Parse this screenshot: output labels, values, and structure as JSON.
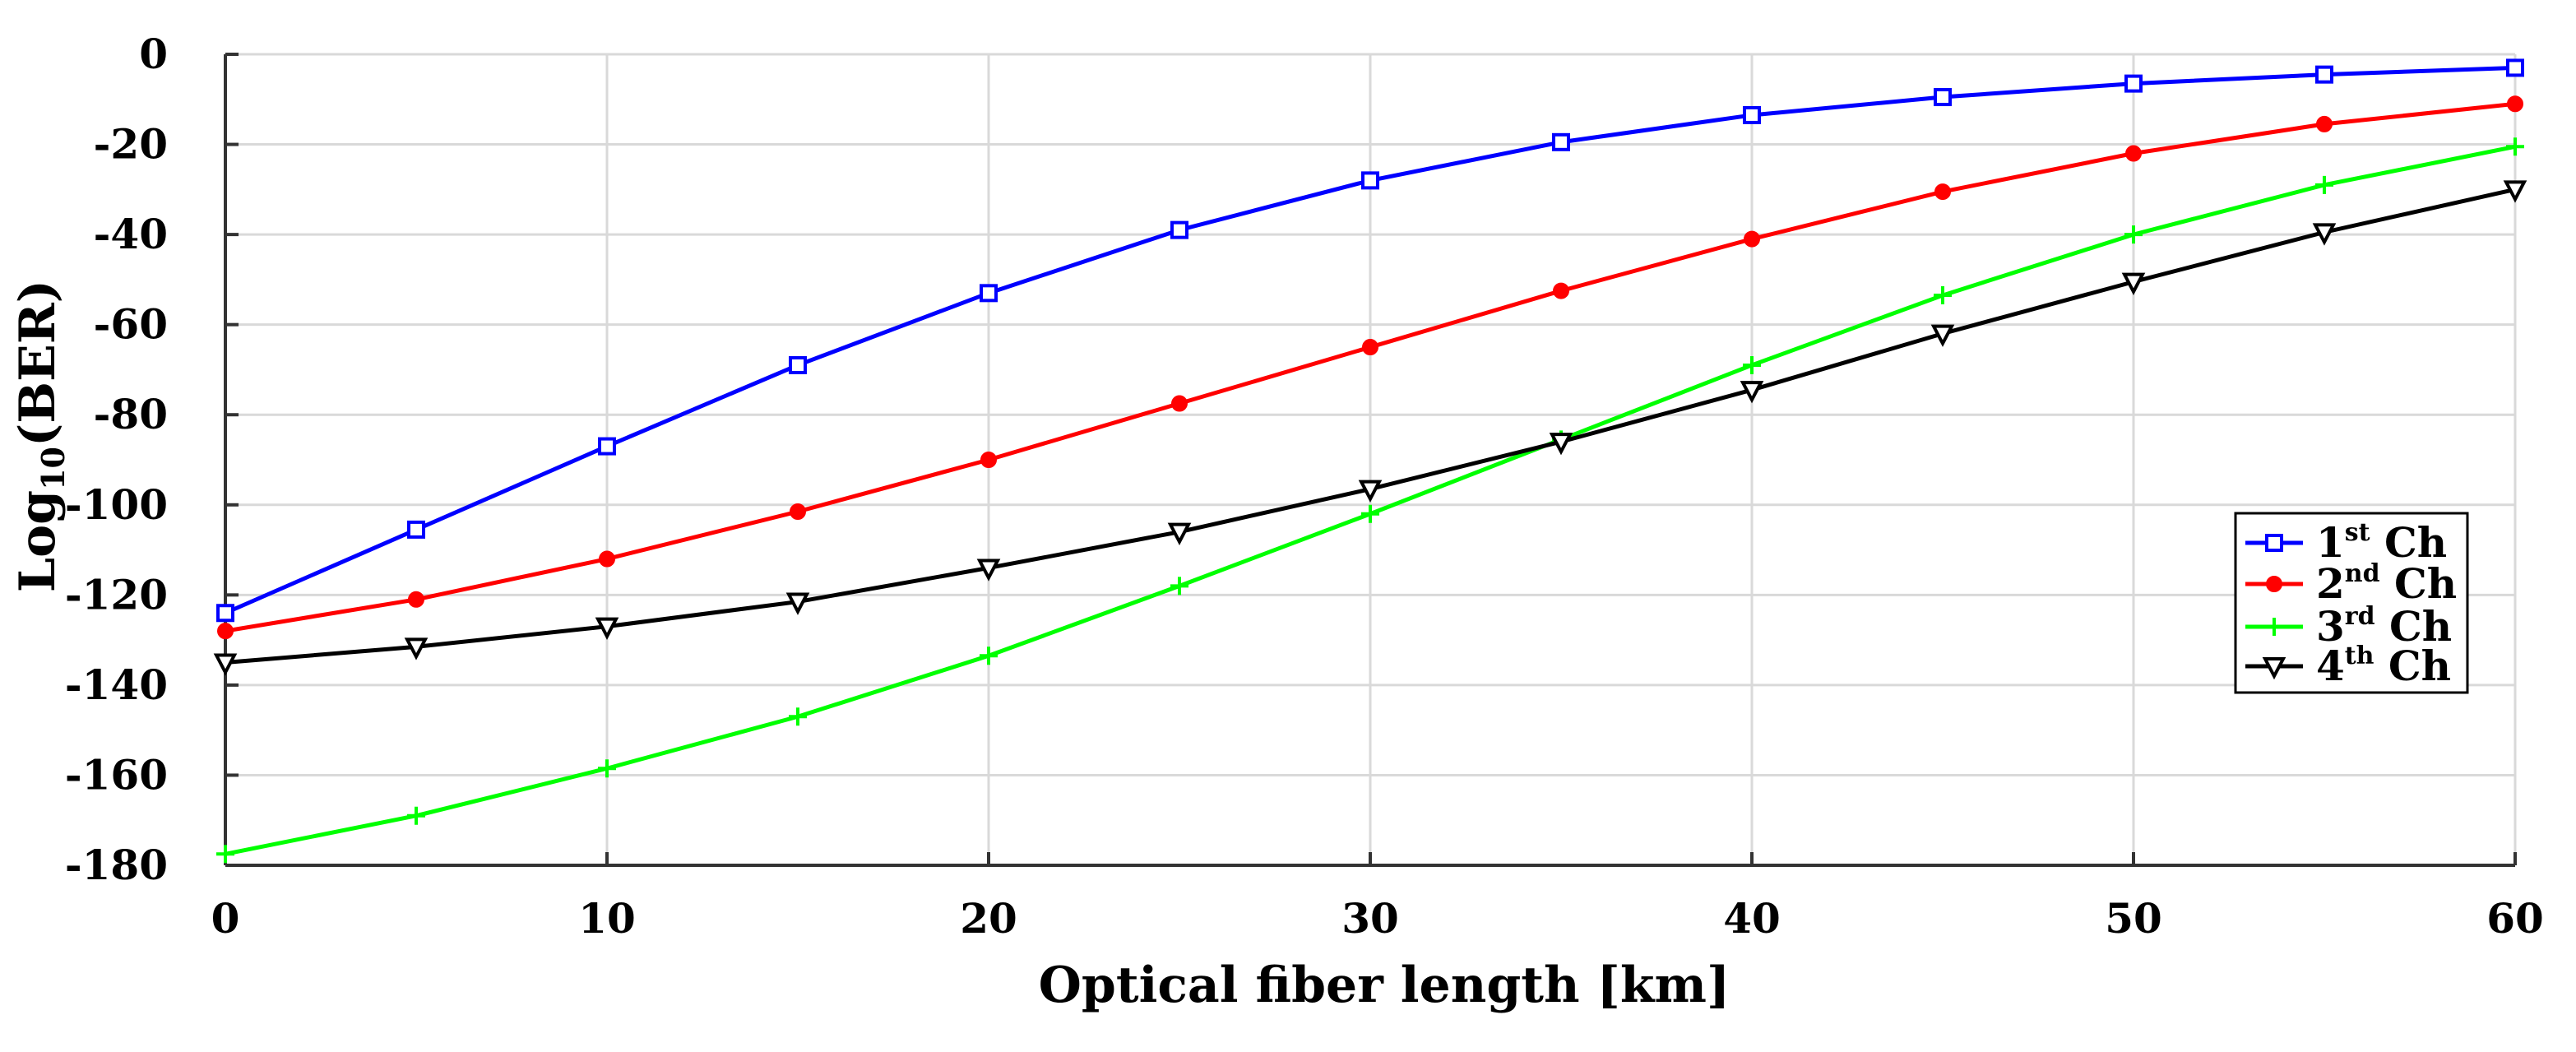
{
  "chart_data": {
    "type": "line",
    "title": "",
    "xlabel": "Optical fiber length [km]",
    "ylabel": {
      "prefix": "Log",
      "sub": "10",
      "suffix": "(BER)"
    },
    "xlim": [
      0,
      60
    ],
    "ylim": [
      -180,
      0
    ],
    "xticks": [
      0,
      10,
      20,
      30,
      40,
      50,
      60
    ],
    "yticks": [
      0,
      -20,
      -40,
      -60,
      -80,
      -100,
      -120,
      -140,
      -160,
      -180
    ],
    "grid": true,
    "legend_position": "right",
    "x": [
      0,
      5,
      10,
      15,
      20,
      25,
      30,
      35,
      40,
      45,
      50,
      55,
      60
    ],
    "series": [
      {
        "name": "1st Ch",
        "num": "1",
        "sup": "st",
        "tail": " Ch",
        "color": "#0000ff",
        "marker": "square",
        "values": [
          -124,
          -105.5,
          -87,
          -69,
          -53,
          -39,
          -28,
          -19.5,
          -13.5,
          -9.5,
          -6.5,
          -4.5,
          -3
        ]
      },
      {
        "name": "2nd Ch",
        "num": "2",
        "sup": "nd",
        "tail": " Ch",
        "color": "#ff0000",
        "marker": "dot",
        "values": [
          -128,
          -121,
          -112,
          -101.5,
          -90,
          -77.5,
          -65,
          -52.5,
          -41,
          -30.5,
          -22,
          -15.5,
          -11
        ]
      },
      {
        "name": "3rd Ch",
        "num": "3",
        "sup": "rd",
        "tail": " Ch",
        "color": "#00ff00",
        "marker": "plus",
        "values": [
          -177.5,
          -169,
          -158.5,
          -147,
          -133.5,
          -118,
          -102,
          -85.5,
          -69,
          -53.5,
          -40,
          -29,
          -20.5
        ]
      },
      {
        "name": "4th Ch",
        "num": "4",
        "sup": "th",
        "tail": " Ch",
        "color": "#000000",
        "marker": "triangle-down",
        "values": [
          -135,
          -131.5,
          -127,
          -121.5,
          -114,
          -106,
          -96.5,
          -86,
          -74.5,
          -62,
          -50.5,
          -39.5,
          -30
        ]
      }
    ]
  }
}
